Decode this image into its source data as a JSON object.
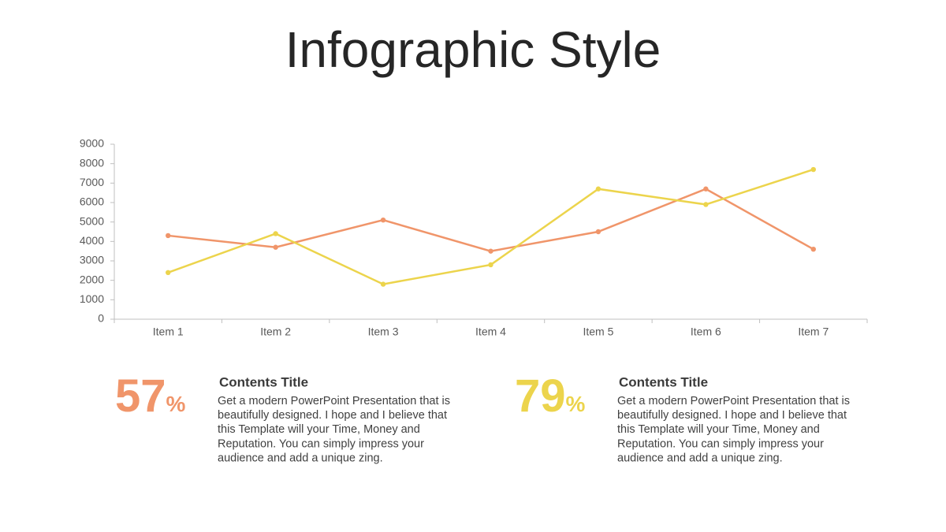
{
  "chart_data": {
    "type": "line",
    "title": "Infographic Style",
    "categories": [
      "Item 1",
      "Item 2",
      "Item 3",
      "Item 4",
      "Item 5",
      "Item 6",
      "Item 7"
    ],
    "series": [
      {
        "color": "#f0956a",
        "values": [
          4300,
          3700,
          5100,
          3500,
          4500,
          6700,
          3600
        ]
      },
      {
        "color": "#ecd44c",
        "values": [
          2400,
          4400,
          1800,
          2800,
          6700,
          5900,
          7700
        ]
      }
    ],
    "ylim": [
      0,
      9000
    ],
    "yticks": [
      0,
      1000,
      2000,
      3000,
      4000,
      5000,
      6000,
      7000,
      8000,
      9000
    ],
    "grid": false
  },
  "stats": [
    {
      "value": 57,
      "unit": "%",
      "color": "#f0956a",
      "heading": "Contents Title",
      "lines": [
        "Get a modern PowerPoint  Presentation that is",
        "beautifully designed. I hope and I  believe that",
        "this Template will your Time, Money and",
        "Reputation. You can simply impress your",
        "audience and add a unique zing."
      ]
    },
    {
      "value": 79,
      "unit": "%",
      "color": "#ecd44c",
      "heading": "Contents Title",
      "lines": [
        "Get a modern PowerPoint  Presentation that is",
        "beautifully designed. I hope and I  believe that",
        "this Template will your Time, Money and",
        "Reputation. You can simply impress your",
        "audience and add a unique zing."
      ]
    }
  ]
}
